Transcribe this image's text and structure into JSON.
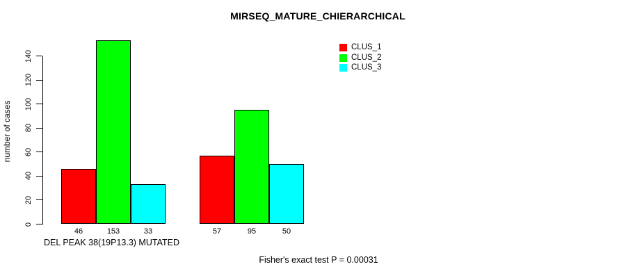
{
  "chart_data": {
    "type": "bar",
    "title": "MIRSEQ_MATURE_CHIERARCHICAL",
    "ylabel": "number of cases",
    "xlabel": "DEL PEAK 38(19P13.3) MUTATED",
    "ylim": [
      0,
      140
    ],
    "yticks": [
      0,
      20,
      40,
      60,
      80,
      100,
      120,
      140
    ],
    "categories": [
      "DEL PEAK 38(19P13.3) MUTATED",
      ""
    ],
    "series": [
      {
        "name": "CLUS_1",
        "color": "#ff0000",
        "values": [
          46,
          57
        ]
      },
      {
        "name": "CLUS_2",
        "color": "#00ff00",
        "values": [
          153,
          95
        ]
      },
      {
        "name": "CLUS_3",
        "color": "#00ffff",
        "values": [
          33,
          50
        ]
      }
    ],
    "bar_value_labels": [
      [
        46,
        153,
        33
      ],
      [
        57,
        95,
        50
      ]
    ],
    "legend_position": "top-right",
    "grid": false,
    "annotation": "Fisher's exact test P = 0.00031"
  }
}
